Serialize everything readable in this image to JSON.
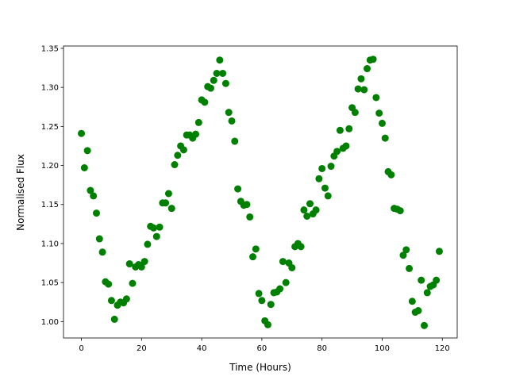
{
  "chart_data": {
    "type": "scatter",
    "x_label": "Time (Hours)",
    "y_label": "Normalised Flux",
    "xlim": [
      -5.95,
      124.95
    ],
    "ylim": [
      0.979,
      1.353
    ],
    "xticks": [
      0,
      20,
      40,
      60,
      80,
      100,
      120
    ],
    "yticks": [
      {
        "value": 1.0,
        "label": "1.00"
      },
      1.05,
      {
        "value": 1.1,
        "label": "1.10"
      },
      1.15,
      {
        "value": 1.2,
        "label": "1.20"
      },
      1.25,
      {
        "value": 1.3,
        "label": "1.30"
      },
      1.35
    ],
    "series": [
      {
        "color": "#008000",
        "x": [
          0,
          1,
          2,
          3,
          4,
          5,
          6,
          7,
          8,
          9,
          10,
          11,
          12,
          13,
          14,
          15,
          16,
          17,
          18,
          19,
          20,
          21,
          22,
          23,
          24,
          25,
          26,
          27,
          28,
          29,
          30,
          31,
          32,
          33,
          34,
          35,
          36,
          37,
          38,
          39,
          40,
          41,
          42,
          43,
          44,
          45,
          46,
          47,
          48,
          49,
          50,
          51,
          52,
          53,
          54,
          55,
          56,
          57,
          58,
          59,
          60,
          61,
          62,
          63,
          64,
          65,
          66,
          67,
          68,
          69,
          70,
          71,
          72,
          73,
          74,
          75,
          76,
          77,
          78,
          79,
          80,
          81,
          82,
          83,
          84,
          85,
          86,
          87,
          88,
          89,
          90,
          91,
          92,
          93,
          94,
          95,
          96,
          97,
          98,
          99,
          100,
          101,
          102,
          103,
          104,
          105,
          106,
          107,
          108,
          109,
          110,
          111,
          112,
          113,
          114,
          115,
          116,
          117,
          118,
          119
        ],
        "values": [
          1.241,
          1.197,
          1.219,
          1.168,
          1.161,
          1.139,
          1.106,
          1.089,
          1.051,
          1.048,
          1.027,
          1.003,
          1.021,
          1.025,
          1.024,
          1.029,
          1.074,
          1.049,
          1.07,
          1.073,
          1.07,
          1.077,
          1.099,
          1.122,
          1.12,
          1.109,
          1.121,
          1.152,
          1.152,
          1.164,
          1.145,
          1.201,
          1.213,
          1.225,
          1.22,
          1.239,
          1.239,
          1.235,
          1.24,
          1.255,
          1.284,
          1.281,
          1.301,
          1.299,
          1.309,
          1.318,
          1.335,
          1.318,
          1.305,
          1.268,
          1.257,
          1.231,
          1.17,
          1.154,
          1.149,
          1.15,
          1.134,
          1.083,
          1.093,
          1.036,
          1.027,
          1.001,
          0.996,
          1.022,
          1.037,
          1.038,
          1.042,
          1.077,
          1.05,
          1.075,
          1.069,
          1.096,
          1.1,
          1.096,
          1.143,
          1.135,
          1.151,
          1.138,
          1.143,
          1.183,
          1.196,
          1.171,
          1.161,
          1.199,
          1.212,
          1.218,
          1.245,
          1.222,
          1.225,
          1.247,
          1.274,
          1.268,
          1.298,
          1.311,
          1.297,
          1.324,
          1.335,
          1.336,
          1.287,
          1.267,
          1.254,
          1.235,
          1.192,
          1.188,
          1.145,
          1.144,
          1.142,
          1.085,
          1.092,
          1.068,
          1.026,
          1.012,
          1.014,
          1.053,
          0.995,
          1.037,
          1.045,
          1.047,
          1.053,
          1.09
        ]
      }
    ]
  }
}
